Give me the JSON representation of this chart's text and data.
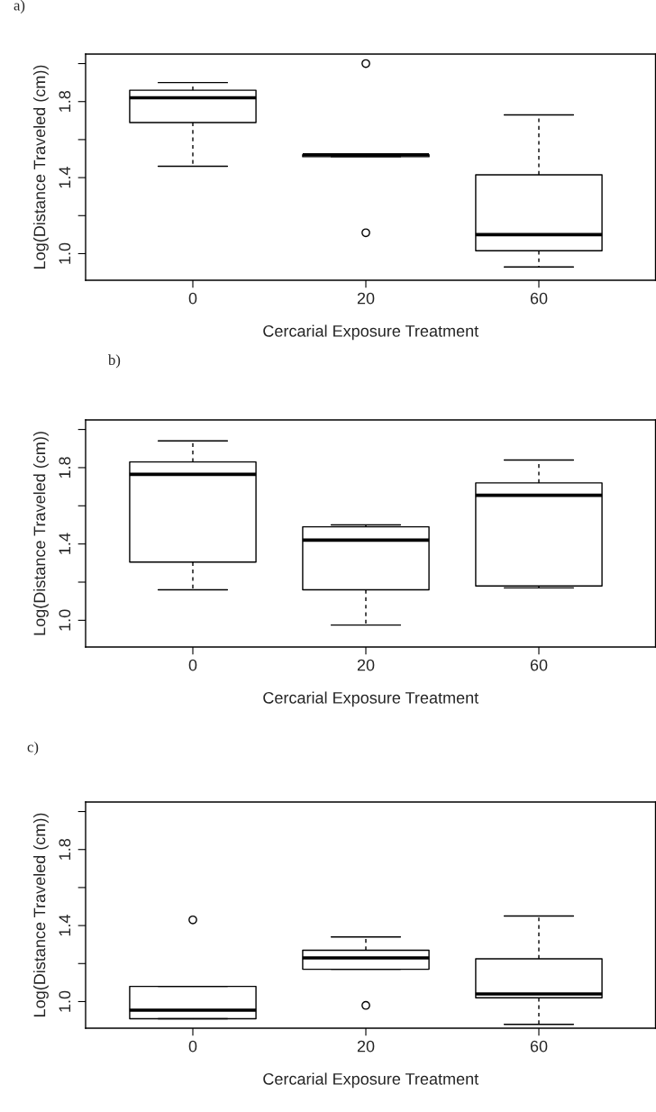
{
  "chart_data": [
    {
      "type": "box",
      "title": "a)",
      "xlabel": "Cercarial Exposure Treatment",
      "ylabel": "Log(Distance Traveled (cm))",
      "categories": [
        "0",
        "20",
        "60"
      ],
      "boxes": [
        {
          "low": 1.46,
          "q1": 1.69,
          "median": 1.82,
          "q3": 1.86,
          "high": 1.9
        },
        {
          "low": 1.51,
          "q1": 1.51,
          "median": 1.52,
          "q3": 1.52,
          "high": 1.52,
          "outliers": [
            2.0,
            1.11
          ]
        },
        {
          "low": 0.93,
          "q1": 1.015,
          "median": 1.1,
          "q3": 1.415,
          "high": 1.73
        }
      ],
      "ylim": [
        0.86,
        2.05
      ],
      "yticks": [
        {
          "value": 1.0,
          "label": "1.0"
        },
        {
          "value": 1.2,
          "label": null
        },
        {
          "value": 1.4,
          "label": "1.4"
        },
        {
          "value": 1.6,
          "label": null
        },
        {
          "value": 1.8,
          "label": "1.8"
        },
        {
          "value": 2.0,
          "label": null
        }
      ]
    },
    {
      "type": "box",
      "title": "b)",
      "xlabel": "Cercarial Exposure Treatment",
      "ylabel": "Log(Distance Traveled (cm))",
      "categories": [
        "0",
        "20",
        "60"
      ],
      "boxes": [
        {
          "low": 1.16,
          "q1": 1.305,
          "median": 1.765,
          "q3": 1.83,
          "high": 1.94
        },
        {
          "low": 0.975,
          "q1": 1.16,
          "median": 1.42,
          "q3": 1.49,
          "high": 1.5
        },
        {
          "low": 1.17,
          "q1": 1.18,
          "median": 1.655,
          "q3": 1.72,
          "high": 1.84
        }
      ],
      "ylim": [
        0.86,
        2.05
      ],
      "yticks": [
        {
          "value": 1.0,
          "label": "1.0"
        },
        {
          "value": 1.2,
          "label": null
        },
        {
          "value": 1.4,
          "label": "1.4"
        },
        {
          "value": 1.6,
          "label": null
        },
        {
          "value": 1.8,
          "label": "1.8"
        },
        {
          "value": 2.0,
          "label": null
        }
      ]
    },
    {
      "type": "box",
      "title": "c)",
      "xlabel": "Cercarial Exposure Treatment",
      "ylabel": "Log(Distance Traveled (cm))",
      "categories": [
        "0",
        "20",
        "60"
      ],
      "boxes": [
        {
          "low": 0.91,
          "q1": 0.91,
          "median": 0.955,
          "q3": 1.08,
          "high": 1.08,
          "outliers": [
            1.43
          ]
        },
        {
          "low": 1.17,
          "q1": 1.17,
          "median": 1.23,
          "q3": 1.27,
          "high": 1.34,
          "outliers": [
            0.98
          ]
        },
        {
          "low": 0.88,
          "q1": 1.02,
          "median": 1.04,
          "q3": 1.225,
          "high": 1.45
        }
      ],
      "ylim": [
        0.86,
        2.05
      ],
      "yticks": [
        {
          "value": 1.0,
          "label": "1.0"
        },
        {
          "value": 1.2,
          "label": null
        },
        {
          "value": 1.4,
          "label": "1.4"
        },
        {
          "value": 1.6,
          "label": null
        },
        {
          "value": 1.8,
          "label": "1.8"
        },
        {
          "value": 2.0,
          "label": null
        }
      ]
    }
  ]
}
